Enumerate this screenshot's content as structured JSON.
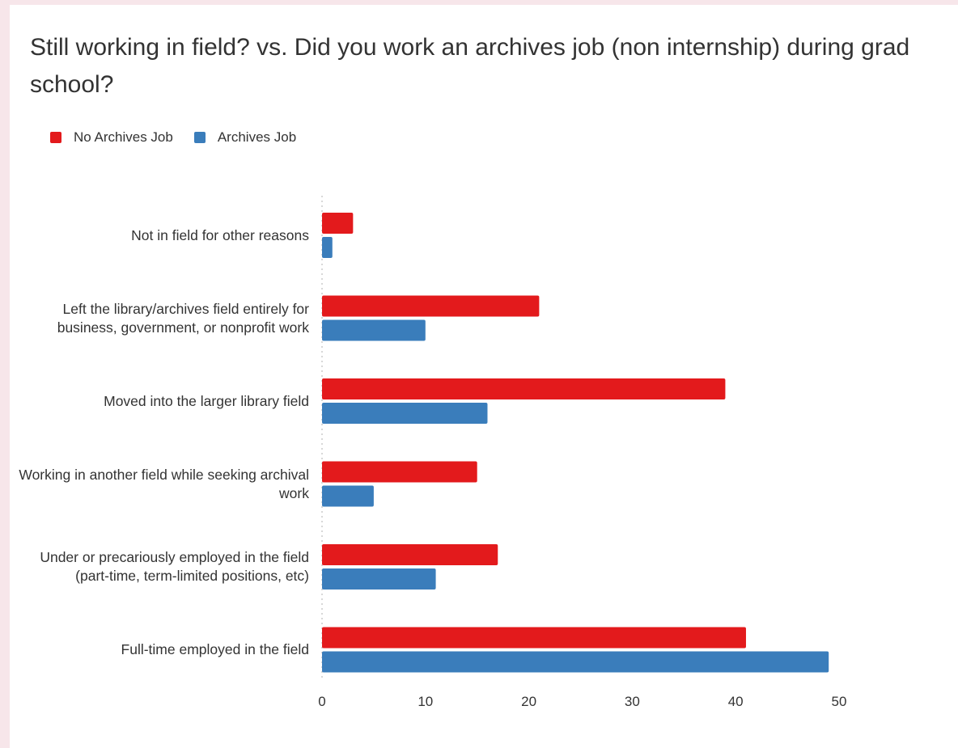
{
  "chart_data": {
    "type": "bar",
    "orientation": "horizontal",
    "title": "Still working in field? vs. Did you work an archives job (non internship) during grad school?",
    "categories": [
      "Not in field for other reasons",
      "Left the library/archives field entirely for business, government, or nonprofit work",
      "Moved into the larger library field",
      "Working in another field while seeking archival work",
      "Under or precariously employed in the field (part-time, term-limited positions, etc)",
      "Full-time employed in the field"
    ],
    "series": [
      {
        "name": "No Archives Job",
        "color": "#e31a1c",
        "values": [
          3,
          21,
          39,
          15,
          17,
          41
        ]
      },
      {
        "name": "Archives Job",
        "color": "#3a7dbb",
        "values": [
          1,
          10,
          16,
          5,
          11,
          49
        ]
      }
    ],
    "xlim": [
      0,
      50
    ],
    "xticks": [
      "0",
      "10",
      "20",
      "30",
      "40",
      "50"
    ],
    "legend_position": "top-left",
    "grid": false
  }
}
